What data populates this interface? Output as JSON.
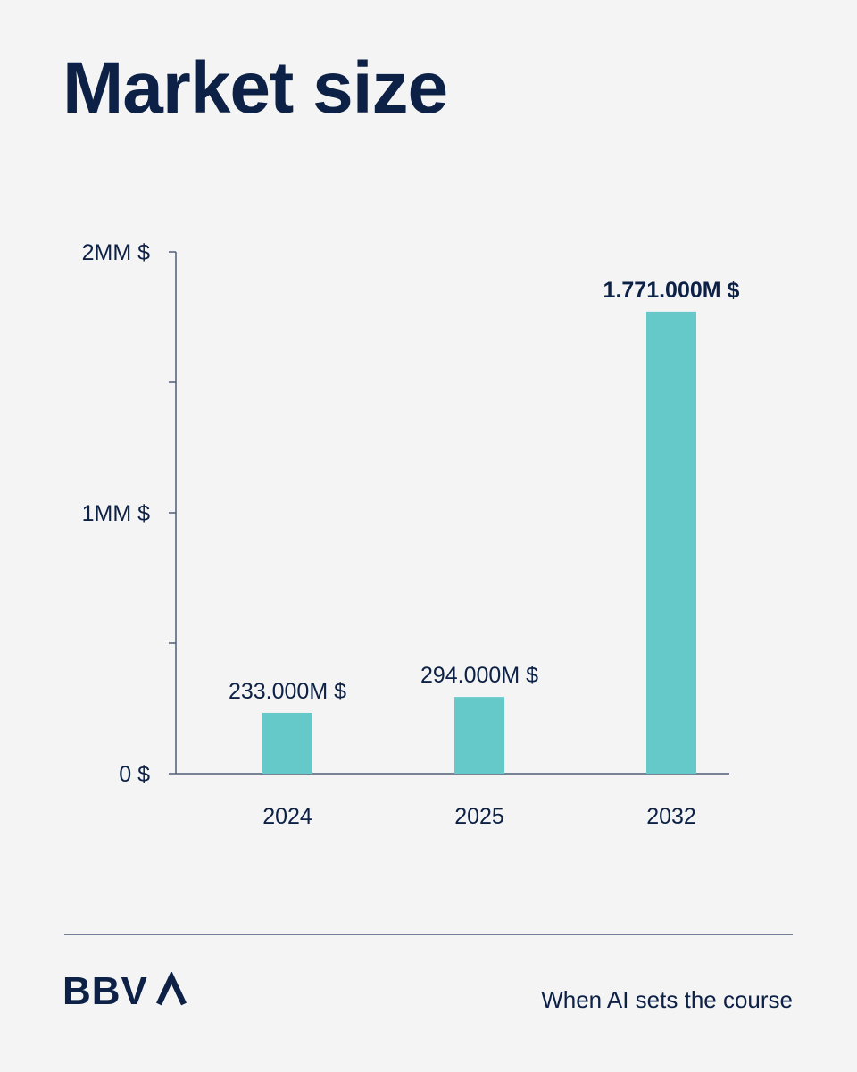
{
  "header": {
    "title": "Market size"
  },
  "chart_data": {
    "type": "bar",
    "categories": [
      "2024",
      "2025",
      "2032"
    ],
    "values": [
      233000,
      294000,
      1771000
    ],
    "value_unit": "M $",
    "data_labels": [
      "233.000M $",
      "294.000M $",
      "1.771.000M $"
    ],
    "highlighted_label_index": 2,
    "ytick_values": [
      0,
      1000000,
      2000000
    ],
    "ytick_labels": [
      "0 $",
      "1MM $",
      "2MM $"
    ],
    "minor_tick_values": [
      500000,
      1500000
    ],
    "ylim": [
      0,
      2000000
    ],
    "title": "",
    "xlabel": "",
    "ylabel": "",
    "grid": false,
    "legend": "none",
    "colors": {
      "bar": "#65c9ca",
      "axis": "#4e5d78",
      "text": "#0c2145"
    }
  },
  "footer": {
    "brand": "BBVA",
    "tagline": "When AI sets the course"
  }
}
